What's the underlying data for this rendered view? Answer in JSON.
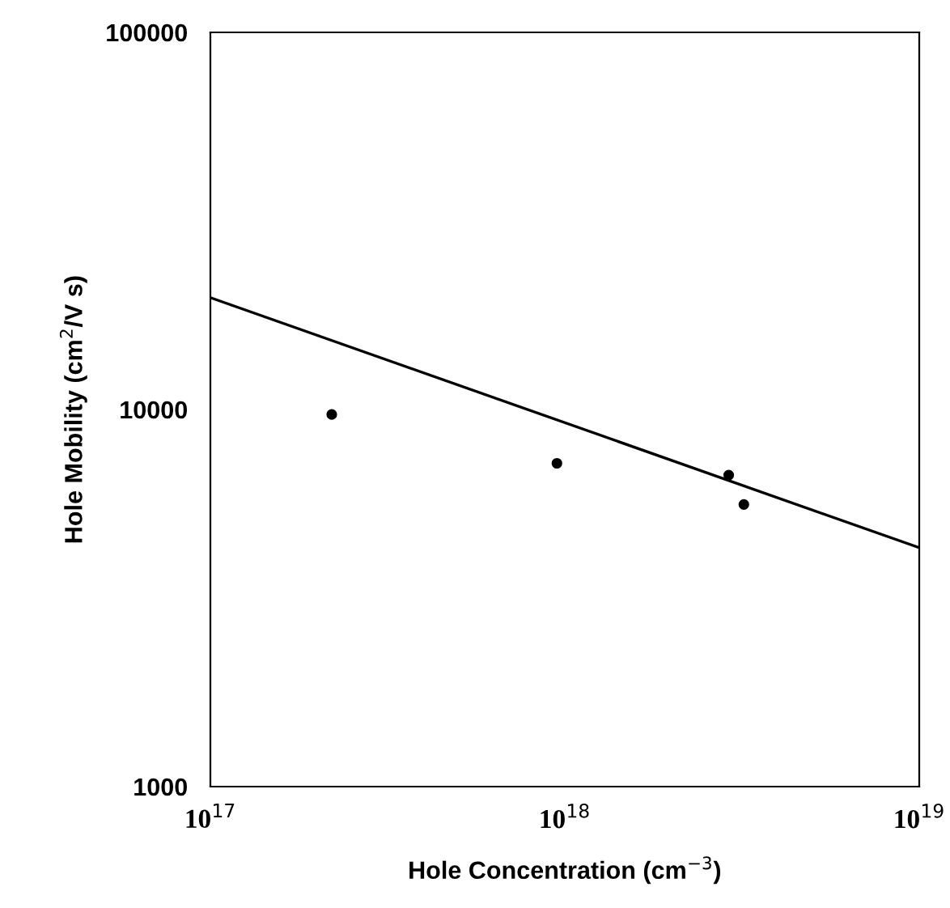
{
  "chart_data": {
    "type": "scatter",
    "xlabel": "Hole Concentration (cm$^{−3}$)",
    "ylabel": "Hole Mobility (cm$^{2}$/V s)",
    "log": "xy",
    "xlim": [
      1e+17,
      1e+19
    ],
    "xticks": [
      {
        "value": 1e+17,
        "label": "10$^{17}$"
      },
      {
        "value": 1e+18,
        "label": "10$^{18}$"
      },
      {
        "value": 1e+19,
        "label": "10$^{19}$"
      }
    ],
    "ylim": [
      1000,
      100000
    ],
    "yticks": [
      1000,
      10000,
      100000
    ],
    "grid": false,
    "series": [
      {
        "marker": "circle",
        "color": "#000000",
        "x": [
          2.2e+17,
          9.5e+17,
          2.9e+18,
          3.2e+18
        ],
        "values": [
          9700,
          7200,
          6700,
          5600
        ]
      },
      {
        "type": "line",
        "marker": "none",
        "color": "#000000",
        "x": [
          1e+17,
          1e+19
        ],
        "values": [
          19800,
          4300
        ]
      }
    ]
  }
}
